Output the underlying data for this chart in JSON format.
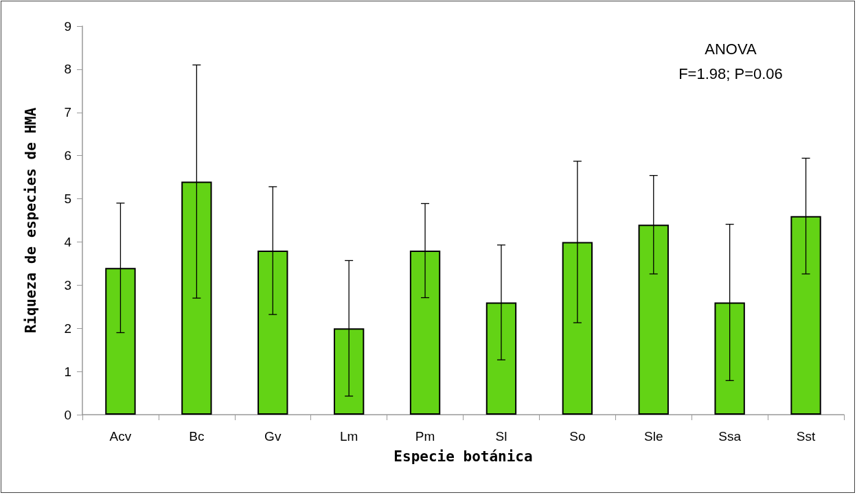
{
  "chart_data": {
    "type": "bar",
    "xlabel": "Especie botánica",
    "ylabel": "Riqueza de especies de HMA",
    "categories": [
      "Acv",
      "Bc",
      "Gv",
      "Lm",
      "Pm",
      "Sl",
      "So",
      "Sle",
      "Ssa",
      "Sst"
    ],
    "values": [
      3.4,
      5.4,
      3.8,
      2.0,
      3.8,
      2.6,
      4.0,
      4.4,
      2.6,
      4.6
    ],
    "errors": [
      1.5,
      2.7,
      1.48,
      1.57,
      1.09,
      1.33,
      1.87,
      1.14,
      1.81,
      1.34
    ],
    "color": "#63d315",
    "ylim": [
      0,
      9
    ],
    "yticks": [
      0,
      1,
      2,
      3,
      4,
      5,
      6,
      7,
      8,
      9
    ],
    "grid": false,
    "annotations": [
      "ANOVA",
      "F=1.98; P=0.06"
    ]
  }
}
